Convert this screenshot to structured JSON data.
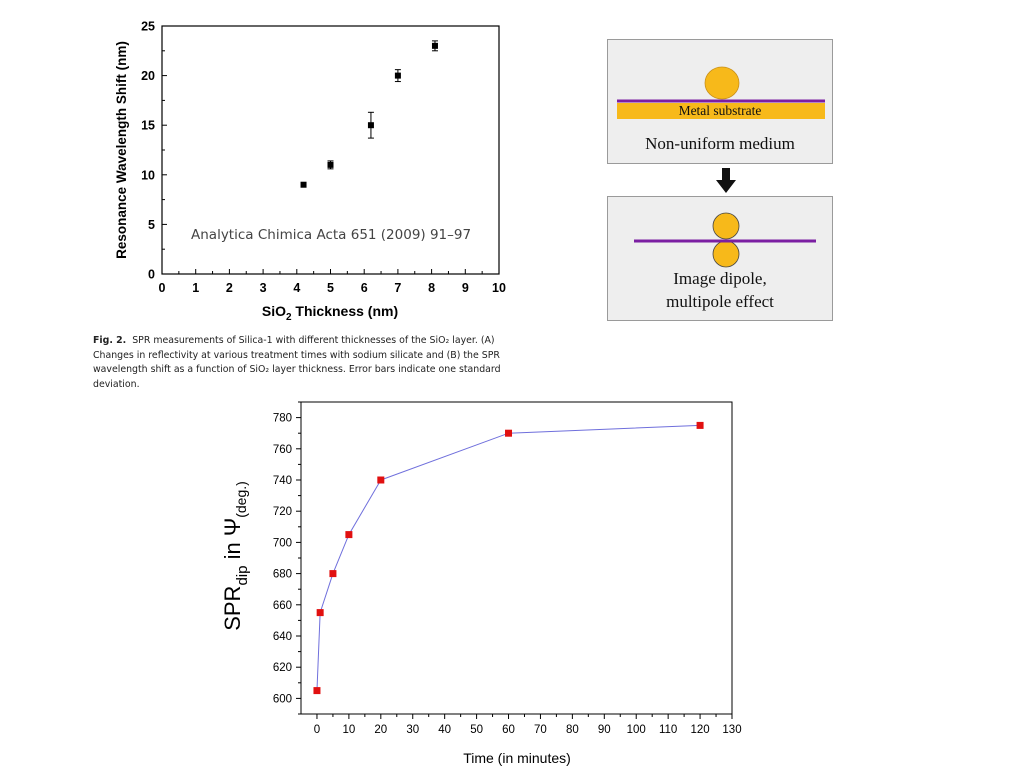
{
  "chart_data": [
    {
      "type": "scatter",
      "xlabel_main": "SiO",
      "xlabel_sub": "2",
      "xlabel_tail": " Thickness (nm)",
      "ylabel": "Resonance Wavelength Shift (nm)",
      "annotation": "Analytica Chimica Acta 651 (2009) 91–97",
      "xlim": [
        0,
        10
      ],
      "ylim": [
        0,
        25
      ],
      "xticks": [
        0,
        1,
        2,
        3,
        4,
        5,
        6,
        7,
        8,
        9,
        10
      ],
      "yticks": [
        0,
        5,
        10,
        15,
        20,
        25
      ],
      "series": [
        {
          "x": [
            4.2,
            5.0,
            6.2,
            7.0,
            8.1
          ],
          "y": [
            9.0,
            11.0,
            15.0,
            20.0,
            23.0
          ],
          "error": [
            0.0,
            0.4,
            1.3,
            0.6,
            0.5
          ]
        }
      ],
      "marker_color": "#000000"
    },
    {
      "type": "line",
      "xlabel": "Time (in minutes)",
      "ylabel_main": "SPR",
      "ylabel_sub": "dip",
      "ylabel_mid": " in Ψ",
      "ylabel_unit_sub": "(deg.)",
      "xlim": [
        -5,
        130
      ],
      "ylim": [
        590,
        790
      ],
      "xticks": [
        0,
        10,
        20,
        30,
        40,
        50,
        60,
        70,
        80,
        90,
        100,
        110,
        120,
        130
      ],
      "yticks": [
        600,
        620,
        640,
        660,
        680,
        700,
        720,
        740,
        760,
        780
      ],
      "series": [
        {
          "x": [
            0,
            1,
            5,
            10,
            20,
            60,
            120
          ],
          "y": [
            605,
            655,
            680,
            705,
            740,
            770,
            775
          ]
        }
      ],
      "line_color": "#6f6fdc",
      "marker_color": "#e11010"
    }
  ],
  "caption": {
    "label": "Fig. 2.",
    "text": "SPR measurements of Silica-1 with different thicknesses of the SiO₂ layer. (A) Changes in reflectivity at various treatment times with sodium silicate and (B) the SPR wavelength shift as a function of SiO₂ layer thickness. Error bars indicate one standard deviation."
  },
  "diagram": {
    "top_panel": {
      "substrate_label": "Metal substrate",
      "medium_label": "Non-uniform medium"
    },
    "bottom_panel": {
      "line1": "Image dipole,",
      "line2": "multipole effect"
    },
    "colors": {
      "gold": "#f7b91a",
      "purple": "#7b1fa2",
      "panel": "#eeeeee",
      "arrow": "#111111"
    }
  }
}
